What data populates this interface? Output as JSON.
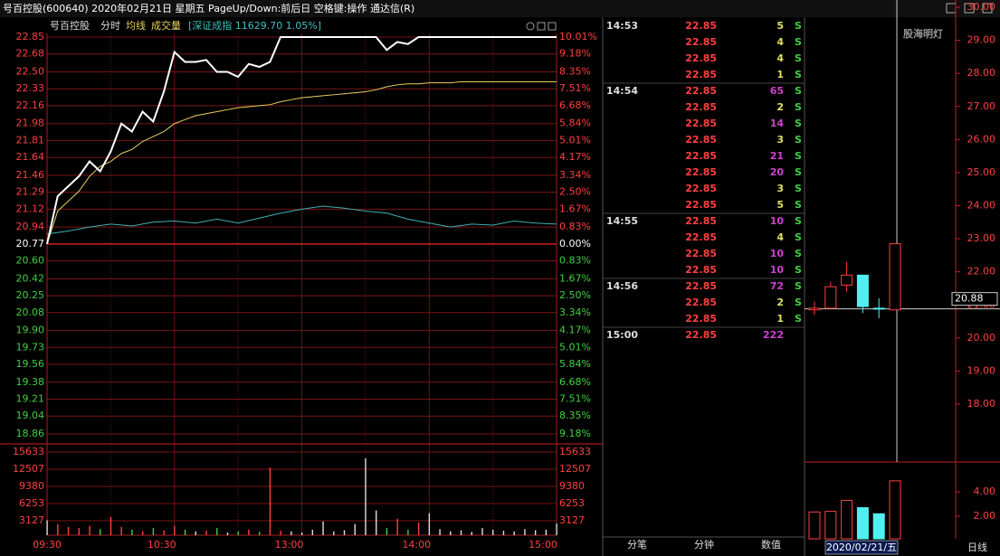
{
  "title_bar": "号百控股(600640)  2020年02月21日  星期五  PageUp/Down:前后日  空格键:操作  通达信(R)",
  "intraday": {
    "header": [
      "号百控股",
      "分时",
      "均线",
      "成交量"
    ],
    "index_label": "[深证成指 11629.70 1.05%]",
    "yticks": [
      22.85,
      22.68,
      {
        "value": 22.5,
        "label": "22.50"
      },
      22.33,
      22.16,
      21.98,
      21.81,
      21.64,
      21.46,
      21.29,
      21.12,
      20.94,
      20.77,
      {
        "value": 20.6,
        "label": "20.60"
      },
      20.42,
      20.25,
      20.08,
      {
        "value": 19.9,
        "label": "19.90"
      },
      19.73,
      19.56,
      19.38,
      19.21,
      19.04,
      18.86
    ],
    "pct_labels": [
      "10.01%",
      "9.18%",
      "8.35%",
      "7.51%",
      "6.68%",
      "5.84%",
      "5.01%",
      "4.17%",
      "3.34%",
      "2.50%",
      "1.67%",
      "0.83%",
      "0.00%",
      "0.83%",
      "1.67%",
      "2.50%",
      "3.34%",
      "4.17%",
      "5.01%",
      "5.84%",
      "6.68%",
      "7.51%",
      "8.35%",
      "9.18%"
    ],
    "ylim": [
      18.86,
      22.85
    ],
    "vol_ticks": [
      15633,
      12507,
      9380,
      6253,
      3127
    ],
    "vol_ylim": [
      0,
      15633
    ],
    "time_labels": [
      "09:30",
      "10:30",
      "13:00",
      "14:00",
      "15:00"
    ],
    "price": [
      20.77,
      21.25,
      21.35,
      21.45,
      21.6,
      21.5,
      21.7,
      21.98,
      21.9,
      22.1,
      22.0,
      22.3,
      22.7,
      22.6,
      22.6,
      22.62,
      22.5,
      22.5,
      22.45,
      22.58,
      22.55,
      22.6,
      22.85,
      22.85,
      22.85,
      22.85,
      22.85,
      22.85,
      22.85,
      22.85,
      22.85,
      22.85,
      22.72,
      22.8,
      22.78,
      22.85,
      22.85,
      22.85,
      22.85,
      22.85,
      22.85,
      22.85,
      22.85,
      22.85,
      22.85,
      22.85,
      22.85,
      22.85,
      22.85
    ],
    "avg": [
      20.77,
      21.1,
      21.2,
      21.3,
      21.45,
      21.55,
      21.6,
      21.68,
      21.72,
      21.8,
      21.85,
      21.9,
      21.98,
      22.02,
      22.06,
      22.08,
      22.1,
      22.12,
      22.14,
      22.15,
      22.16,
      22.17,
      22.2,
      22.22,
      22.24,
      22.25,
      22.26,
      22.27,
      22.28,
      22.29,
      22.3,
      22.32,
      22.35,
      22.37,
      22.38,
      22.38,
      22.39,
      22.39,
      22.39,
      22.4,
      22.4,
      22.4,
      22.4,
      22.4,
      22.4,
      22.4,
      22.4,
      22.4,
      22.4
    ],
    "index": [
      20.87,
      20.9,
      20.94,
      20.97,
      20.95,
      20.99,
      21.0,
      20.98,
      21.02,
      20.98,
      21.03,
      21.08,
      21.12,
      21.15,
      21.13,
      21.1,
      21.08,
      21.02,
      20.98,
      20.94,
      20.97,
      20.96,
      21.0,
      20.98,
      20.97
    ],
    "volume": [
      3200,
      2500,
      2000,
      1800,
      2200,
      1600,
      3800,
      2000,
      1500,
      1200,
      1800,
      1400,
      2200,
      1500,
      1200,
      1300,
      1800,
      1000,
      1200,
      1500,
      1100,
      12800,
      1300,
      1200,
      1000,
      1500,
      3000,
      1200,
      1400,
      2500,
      14500,
      5000,
      1800,
      3500,
      1500,
      2800,
      4500,
      1600,
      1200,
      1400,
      1100,
      1800,
      1500,
      1300,
      1200,
      1600,
      1400,
      1500,
      2600
    ]
  },
  "ticks": {
    "rows": [
      {
        "time": "14:53",
        "price": 22.85,
        "volume": 5,
        "flag": "S"
      },
      {
        "price": 22.85,
        "volume": 4,
        "flag": "S"
      },
      {
        "price": 22.85,
        "volume": 4,
        "flag": "S"
      },
      {
        "price": 22.85,
        "volume": 1,
        "flag": "S"
      },
      {
        "time": "14:54",
        "price": 22.85,
        "volume": 65,
        "flag": "S"
      },
      {
        "price": 22.85,
        "volume": 2,
        "flag": "S"
      },
      {
        "price": 22.85,
        "volume": 14,
        "flag": "S"
      },
      {
        "price": 22.85,
        "volume": 3,
        "flag": "S"
      },
      {
        "price": 22.85,
        "volume": 21,
        "flag": "S"
      },
      {
        "price": 22.85,
        "volume": 20,
        "flag": "S"
      },
      {
        "price": 22.85,
        "volume": 3,
        "flag": "S"
      },
      {
        "price": 22.85,
        "volume": 5,
        "flag": "S"
      },
      {
        "time": "14:55",
        "price": 22.85,
        "volume": 10,
        "flag": "S"
      },
      {
        "price": 22.85,
        "volume": 4,
        "flag": "S"
      },
      {
        "price": 22.85,
        "volume": 10,
        "flag": "S"
      },
      {
        "price": 22.85,
        "volume": 10,
        "flag": "S"
      },
      {
        "time": "14:56",
        "price": 22.85,
        "volume": 72,
        "flag": "S"
      },
      {
        "price": 22.85,
        "volume": 2,
        "flag": "S"
      },
      {
        "price": 22.85,
        "volume": 1,
        "flag": "S"
      },
      {
        "time": "15:00",
        "price": 22.85,
        "volume": 222
      }
    ],
    "tabs": [
      "分笔",
      "分钟",
      "数值"
    ]
  },
  "kline": {
    "watermark": "股海明灯",
    "yticks": [
      {
        "value": 30,
        "label": "30.00"
      },
      {
        "value": 29,
        "label": "29.00"
      },
      {
        "value": 28,
        "label": "28.00"
      },
      {
        "value": 27,
        "label": "27.00"
      },
      {
        "value": 26,
        "label": "26.00"
      },
      {
        "value": 25,
        "label": "25.00"
      },
      {
        "value": 24,
        "label": "24.00"
      },
      {
        "value": 23,
        "label": "23.00"
      },
      {
        "value": 22,
        "label": "22.00"
      },
      {
        "value": 21,
        "label": "21.00"
      },
      {
        "value": 20,
        "label": "20.00"
      },
      {
        "value": 19,
        "label": "19.00"
      },
      {
        "value": 18,
        "label": "18.00"
      }
    ],
    "ylim": [
      18,
      30
    ],
    "cursor": 20.88,
    "candles": [
      {
        "open": 20.85,
        "close": 20.9,
        "high": 21.1,
        "low": 20.7
      },
      {
        "open": 20.9,
        "close": 21.55,
        "high": 21.7,
        "low": 20.9
      },
      {
        "open": 21.6,
        "close": 21.9,
        "high": 22.3,
        "low": 21.4
      },
      {
        "open": 21.9,
        "close": 20.95,
        "high": 21.9,
        "low": 20.75
      },
      {
        "open": 20.9,
        "close": 20.88,
        "high": 21.2,
        "low": 20.6
      },
      {
        "open": 20.85,
        "close": 22.85,
        "high": 22.85,
        "low": 20.85
      }
    ],
    "vol_ticks": [
      {
        "value": 4,
        "label": "4.00"
      },
      {
        "value": 2,
        "label": "2.00"
      }
    ],
    "volume": [
      2.35,
      2.4,
      3.3,
      2.7,
      2.2,
      4.9
    ],
    "date": "2020/02/21/五",
    "period": "日线"
  }
}
